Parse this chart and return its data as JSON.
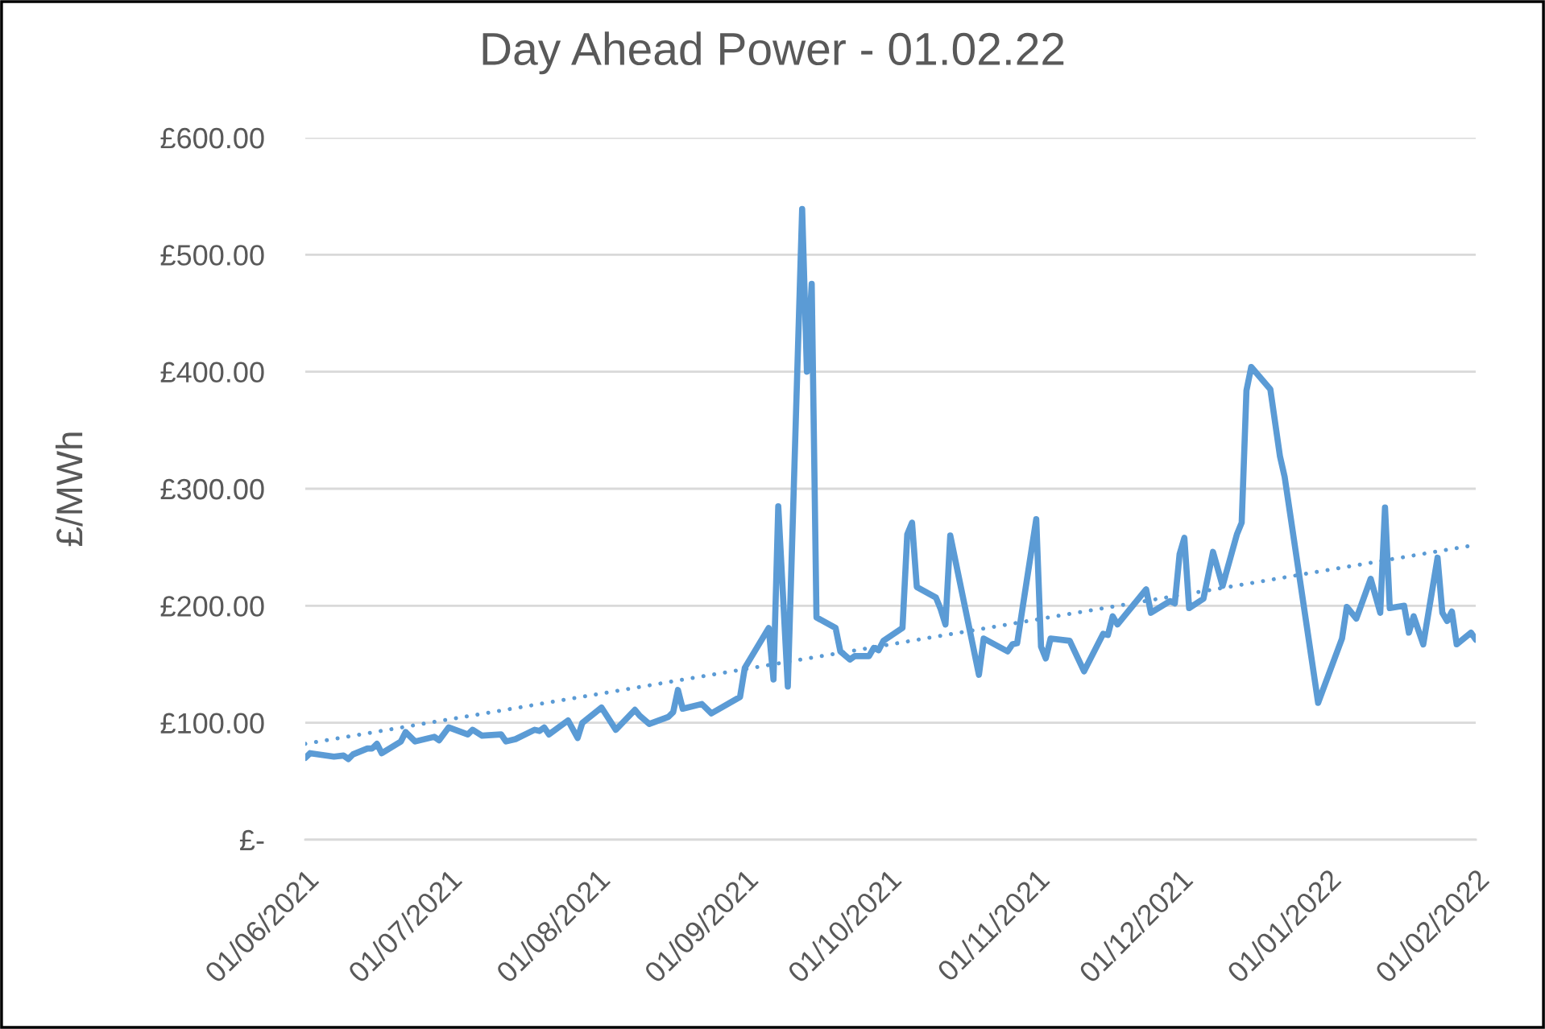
{
  "chart_data": {
    "type": "line",
    "title": "Day Ahead Power - 01.02.22",
    "ylabel": "£/MWh",
    "x": [
      "2021-06-01",
      "2021-06-02",
      "2021-06-07",
      "2021-06-09",
      "2021-06-10",
      "2021-06-11",
      "2021-06-14",
      "2021-06-15",
      "2021-06-16",
      "2021-06-17",
      "2021-06-21",
      "2021-06-22",
      "2021-06-24",
      "2021-06-28",
      "2021-06-29",
      "2021-07-01",
      "2021-07-05",
      "2021-07-06",
      "2021-07-08",
      "2021-07-12",
      "2021-07-13",
      "2021-07-15",
      "2021-07-19",
      "2021-07-20",
      "2021-07-21",
      "2021-07-22",
      "2021-07-26",
      "2021-07-28",
      "2021-07-29",
      "2021-08-02",
      "2021-08-05",
      "2021-08-09",
      "2021-08-10",
      "2021-08-12",
      "2021-08-16",
      "2021-08-17",
      "2021-08-18",
      "2021-08-19",
      "2021-08-23",
      "2021-08-25",
      "2021-08-31",
      "2021-09-01",
      "2021-09-06",
      "2021-09-07",
      "2021-09-08",
      "2021-09-10",
      "2021-09-13",
      "2021-09-14",
      "2021-09-15",
      "2021-09-16",
      "2021-09-20",
      "2021-09-21",
      "2021-09-23",
      "2021-09-24",
      "2021-09-27",
      "2021-09-28",
      "2021-09-29",
      "2021-09-30",
      "2021-10-04",
      "2021-10-05",
      "2021-10-06",
      "2021-10-07",
      "2021-10-11",
      "2021-10-12",
      "2021-10-13",
      "2021-10-14",
      "2021-10-20",
      "2021-10-21",
      "2021-10-26",
      "2021-10-27",
      "2021-10-28",
      "2021-11-01",
      "2021-11-02",
      "2021-11-03",
      "2021-11-04",
      "2021-11-08",
      "2021-11-11",
      "2021-11-15",
      "2021-11-16",
      "2021-11-17",
      "2021-11-18",
      "2021-11-24",
      "2021-11-25",
      "2021-11-29",
      "2021-11-30",
      "2021-12-01",
      "2021-12-02",
      "2021-12-03",
      "2021-12-06",
      "2021-12-08",
      "2021-12-10",
      "2021-12-13",
      "2021-12-14",
      "2021-12-15",
      "2021-12-16",
      "2021-12-20",
      "2021-12-22",
      "2021-12-23",
      "2021-12-30",
      "2022-01-04",
      "2022-01-05",
      "2022-01-07",
      "2022-01-10",
      "2022-01-12",
      "2022-01-13",
      "2022-01-14",
      "2022-01-17",
      "2022-01-18",
      "2022-01-19",
      "2022-01-21",
      "2022-01-24",
      "2022-01-25",
      "2022-01-26",
      "2022-01-27",
      "2022-01-28",
      "2022-01-31",
      "2022-02-01"
    ],
    "series": [
      {
        "color": "#5b9bd5",
        "values": [
          70,
          74,
          71,
          72,
          69,
          73,
          78,
          78,
          82,
          74,
          84,
          92,
          84,
          88,
          85,
          96,
          90,
          94,
          89,
          90,
          84,
          86,
          94,
          93,
          96,
          90,
          102,
          87,
          100,
          113,
          94,
          111,
          106,
          99,
          105,
          109,
          128,
          112,
          116,
          108,
          122,
          147,
          181,
          137,
          285,
          131,
          539,
          400,
          475,
          190,
          181,
          161,
          154,
          157,
          157,
          164,
          162,
          170,
          181,
          261,
          271,
          216,
          207,
          197,
          184,
          260,
          141,
          172,
          161,
          167,
          168,
          274,
          165,
          155,
          172,
          170,
          144,
          176,
          175,
          191,
          184,
          214,
          194,
          204,
          202,
          244,
          258,
          198,
          206,
          246,
          217,
          261,
          271,
          384,
          404,
          385,
          328,
          310,
          117,
          172,
          199,
          189,
          223,
          194,
          284,
          198,
          200,
          177,
          191,
          167,
          241,
          194,
          187,
          195,
          167,
          177,
          171
        ]
      },
      {
        "type": "line",
        "x": [
          "2021-06-01",
          "2022-02-01"
        ],
        "values": [
          82,
          252
        ],
        "color": "#5b9bd5",
        "line_style": "dotted"
      }
    ],
    "xlim": [
      "2021-06-01",
      "2022-02-01"
    ],
    "xticks": [
      {
        "value": "2021-06-01",
        "label": "01/06/2021"
      },
      {
        "value": "2021-07-01",
        "label": "01/07/2021"
      },
      {
        "value": "2021-08-01",
        "label": "01/08/2021"
      },
      {
        "value": "2021-09-01",
        "label": "01/09/2021"
      },
      {
        "value": "2021-10-01",
        "label": "01/10/2021"
      },
      {
        "value": "2021-11-01",
        "label": "01/11/2021"
      },
      {
        "value": "2021-12-01",
        "label": "01/12/2021"
      },
      {
        "value": "2022-01-01",
        "label": "01/01/2022"
      },
      {
        "value": "2022-02-01",
        "label": "01/02/2022"
      }
    ],
    "ylim": [
      0,
      600
    ],
    "yticks": [
      {
        "value": 0,
        "label": "£-"
      },
      {
        "value": 100,
        "label": "£100.00"
      },
      {
        "value": 200,
        "label": "£200.00"
      },
      {
        "value": 300,
        "label": "£300.00"
      },
      {
        "value": 400,
        "label": "£400.00"
      },
      {
        "value": 500,
        "label": "£500.00"
      },
      {
        "value": 600,
        "label": "£600.00"
      }
    ],
    "grid": "y",
    "marker": "none",
    "line_style": "solid"
  }
}
